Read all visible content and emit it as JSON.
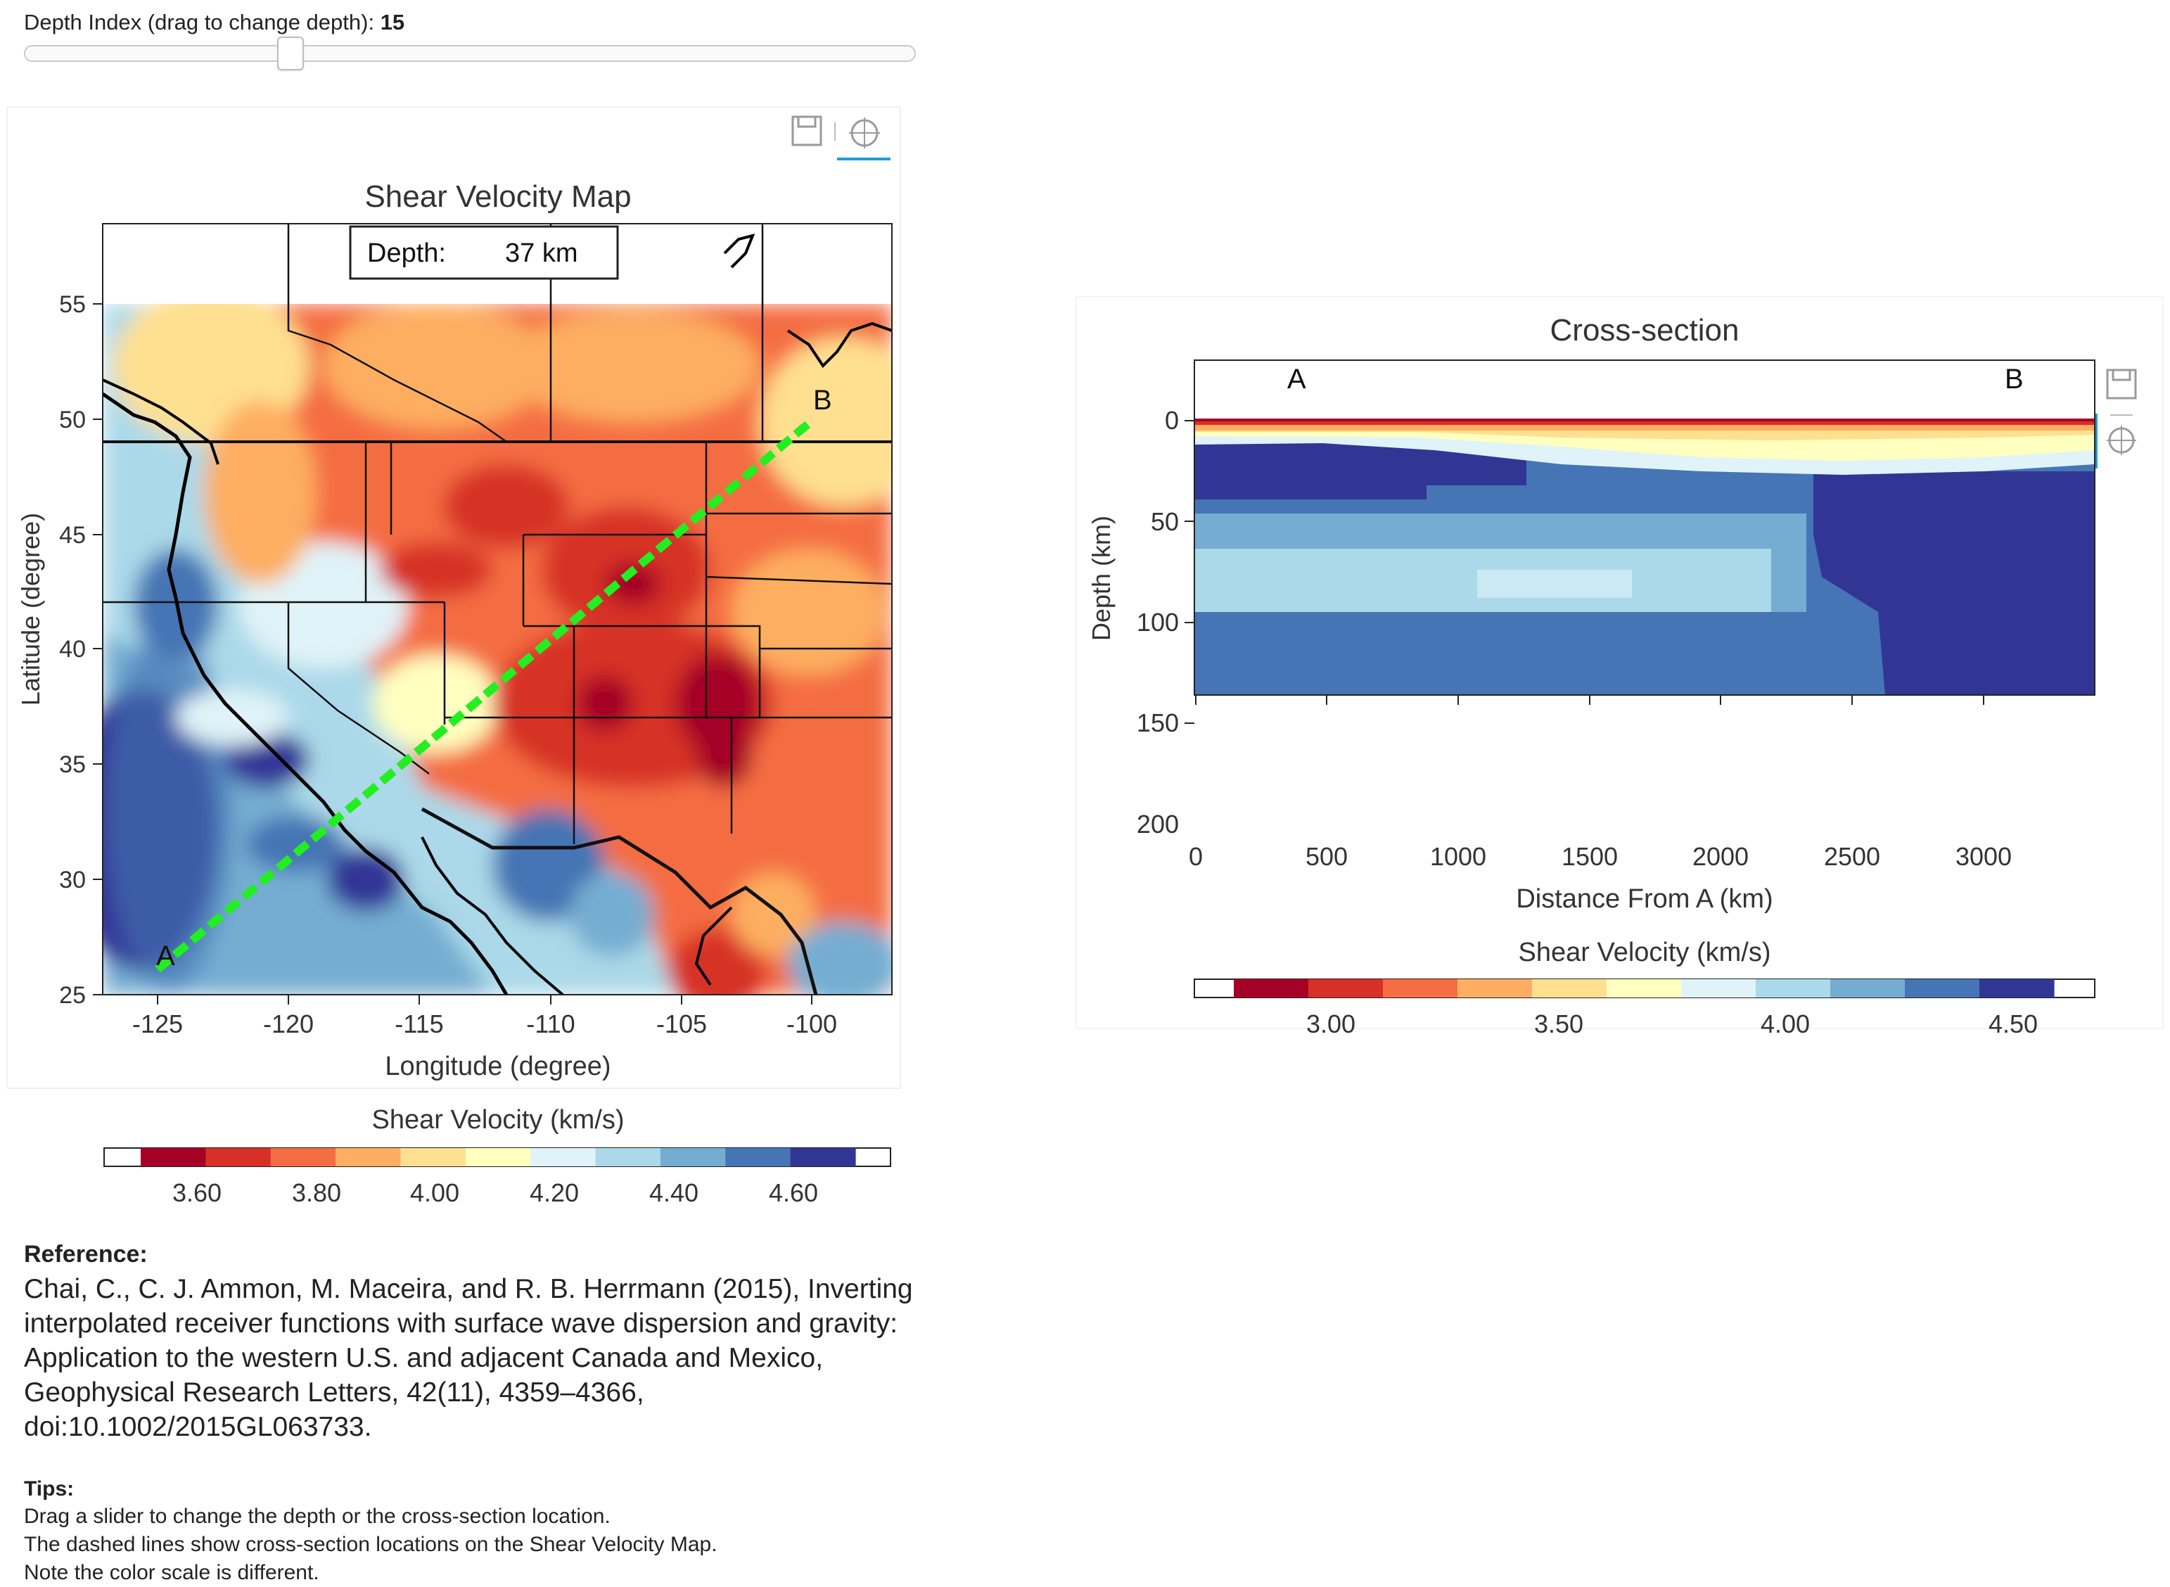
{
  "slider": {
    "label": "Depth Index (drag to change depth):",
    "value": "15",
    "fraction": 0.293
  },
  "map_panel": {
    "title": "Shear Velocity Map",
    "depth_label": "Depth:",
    "depth_value": "37 km",
    "xlabel": "Longitude (degree)",
    "ylabel": "Latitude (degree)",
    "x_ticks": [
      "-125",
      "-120",
      "-115",
      "-110",
      "-105",
      "-100"
    ],
    "y_ticks": [
      "55",
      "50",
      "45",
      "40",
      "35",
      "30",
      "25"
    ],
    "point_a": "A",
    "point_b": "B",
    "colorbar_title": "Shear Velocity (km/s)",
    "colorbar_ticks": [
      "3.60",
      "3.80",
      "4.00",
      "4.20",
      "4.40",
      "4.60"
    ],
    "colors": [
      "#a50026",
      "#d73027",
      "#f46d43",
      "#fdae61",
      "#fee090",
      "#ffffbf",
      "#e0f3f8",
      "#abd9e9",
      "#74add1",
      "#4575b4",
      "#313695"
    ],
    "line_color": "#22ee22",
    "toolbar": {
      "save_icon": "save-icon",
      "crosshair_icon": "crosshair-icon"
    }
  },
  "cross_section": {
    "title": "Cross-section",
    "point_a": "A",
    "point_b": "B",
    "xlabel": "Distance From A (km)",
    "ylabel": "Depth (km)",
    "x_ticks": [
      "0",
      "500",
      "1000",
      "1500",
      "2000",
      "2500",
      "3000"
    ],
    "y_ticks": [
      "0",
      "50",
      "100",
      "150",
      "200"
    ],
    "colorbar_title": "Shear Velocity (km/s)",
    "colorbar_ticks": [
      "3.00",
      "3.50",
      "4.00",
      "4.50"
    ],
    "toolbar": {
      "save_icon": "save-icon",
      "crosshair_icon": "crosshair-icon"
    }
  },
  "chart_data": [
    {
      "type": "heatmap",
      "title": "Shear Velocity Map",
      "xlabel": "Longitude (degree)",
      "ylabel": "Latitude (degree)",
      "xlim": [
        -127,
        -97
      ],
      "ylim": [
        25,
        58
      ],
      "cross_section_line": {
        "A": [
          -125,
          26
        ],
        "B": [
          -100,
          50
        ]
      },
      "annotation": "Depth: 37 km",
      "colorbar": {
        "min": 3.5,
        "max": 4.7,
        "ticks": [
          3.6,
          3.8,
          4.0,
          4.2,
          4.4,
          4.6
        ]
      }
    },
    {
      "type": "heatmap",
      "title": "Cross-section",
      "xlabel": "Distance From A (km)",
      "ylabel": "Depth (km)",
      "xlim": [
        0,
        3430
      ],
      "ylim": [
        200,
        -30
      ],
      "colorbar": {
        "min": 2.75,
        "max": 4.75,
        "ticks": [
          3.0,
          3.5,
          4.0,
          4.5
        ]
      }
    }
  ],
  "reference": {
    "title": "Reference:",
    "lines": [
      "Chai, C., C. J. Ammon, M. Maceira, and R. B. Herrmann (2015), Inverting",
      "interpolated receiver functions with surface wave dispersion and gravity:",
      "Application to the western U.S. and adjacent Canada and Mexico,",
      "Geophysical Research Letters, 42(11), 4359–4366,",
      "doi:10.1002/2015GL063733."
    ]
  },
  "tips": {
    "title": "Tips:",
    "lines": [
      "Drag a slider to change the depth or the cross-section location.",
      "The dashed lines show cross-section locations on the Shear Velocity Map.",
      "Note the color scale is different."
    ]
  }
}
